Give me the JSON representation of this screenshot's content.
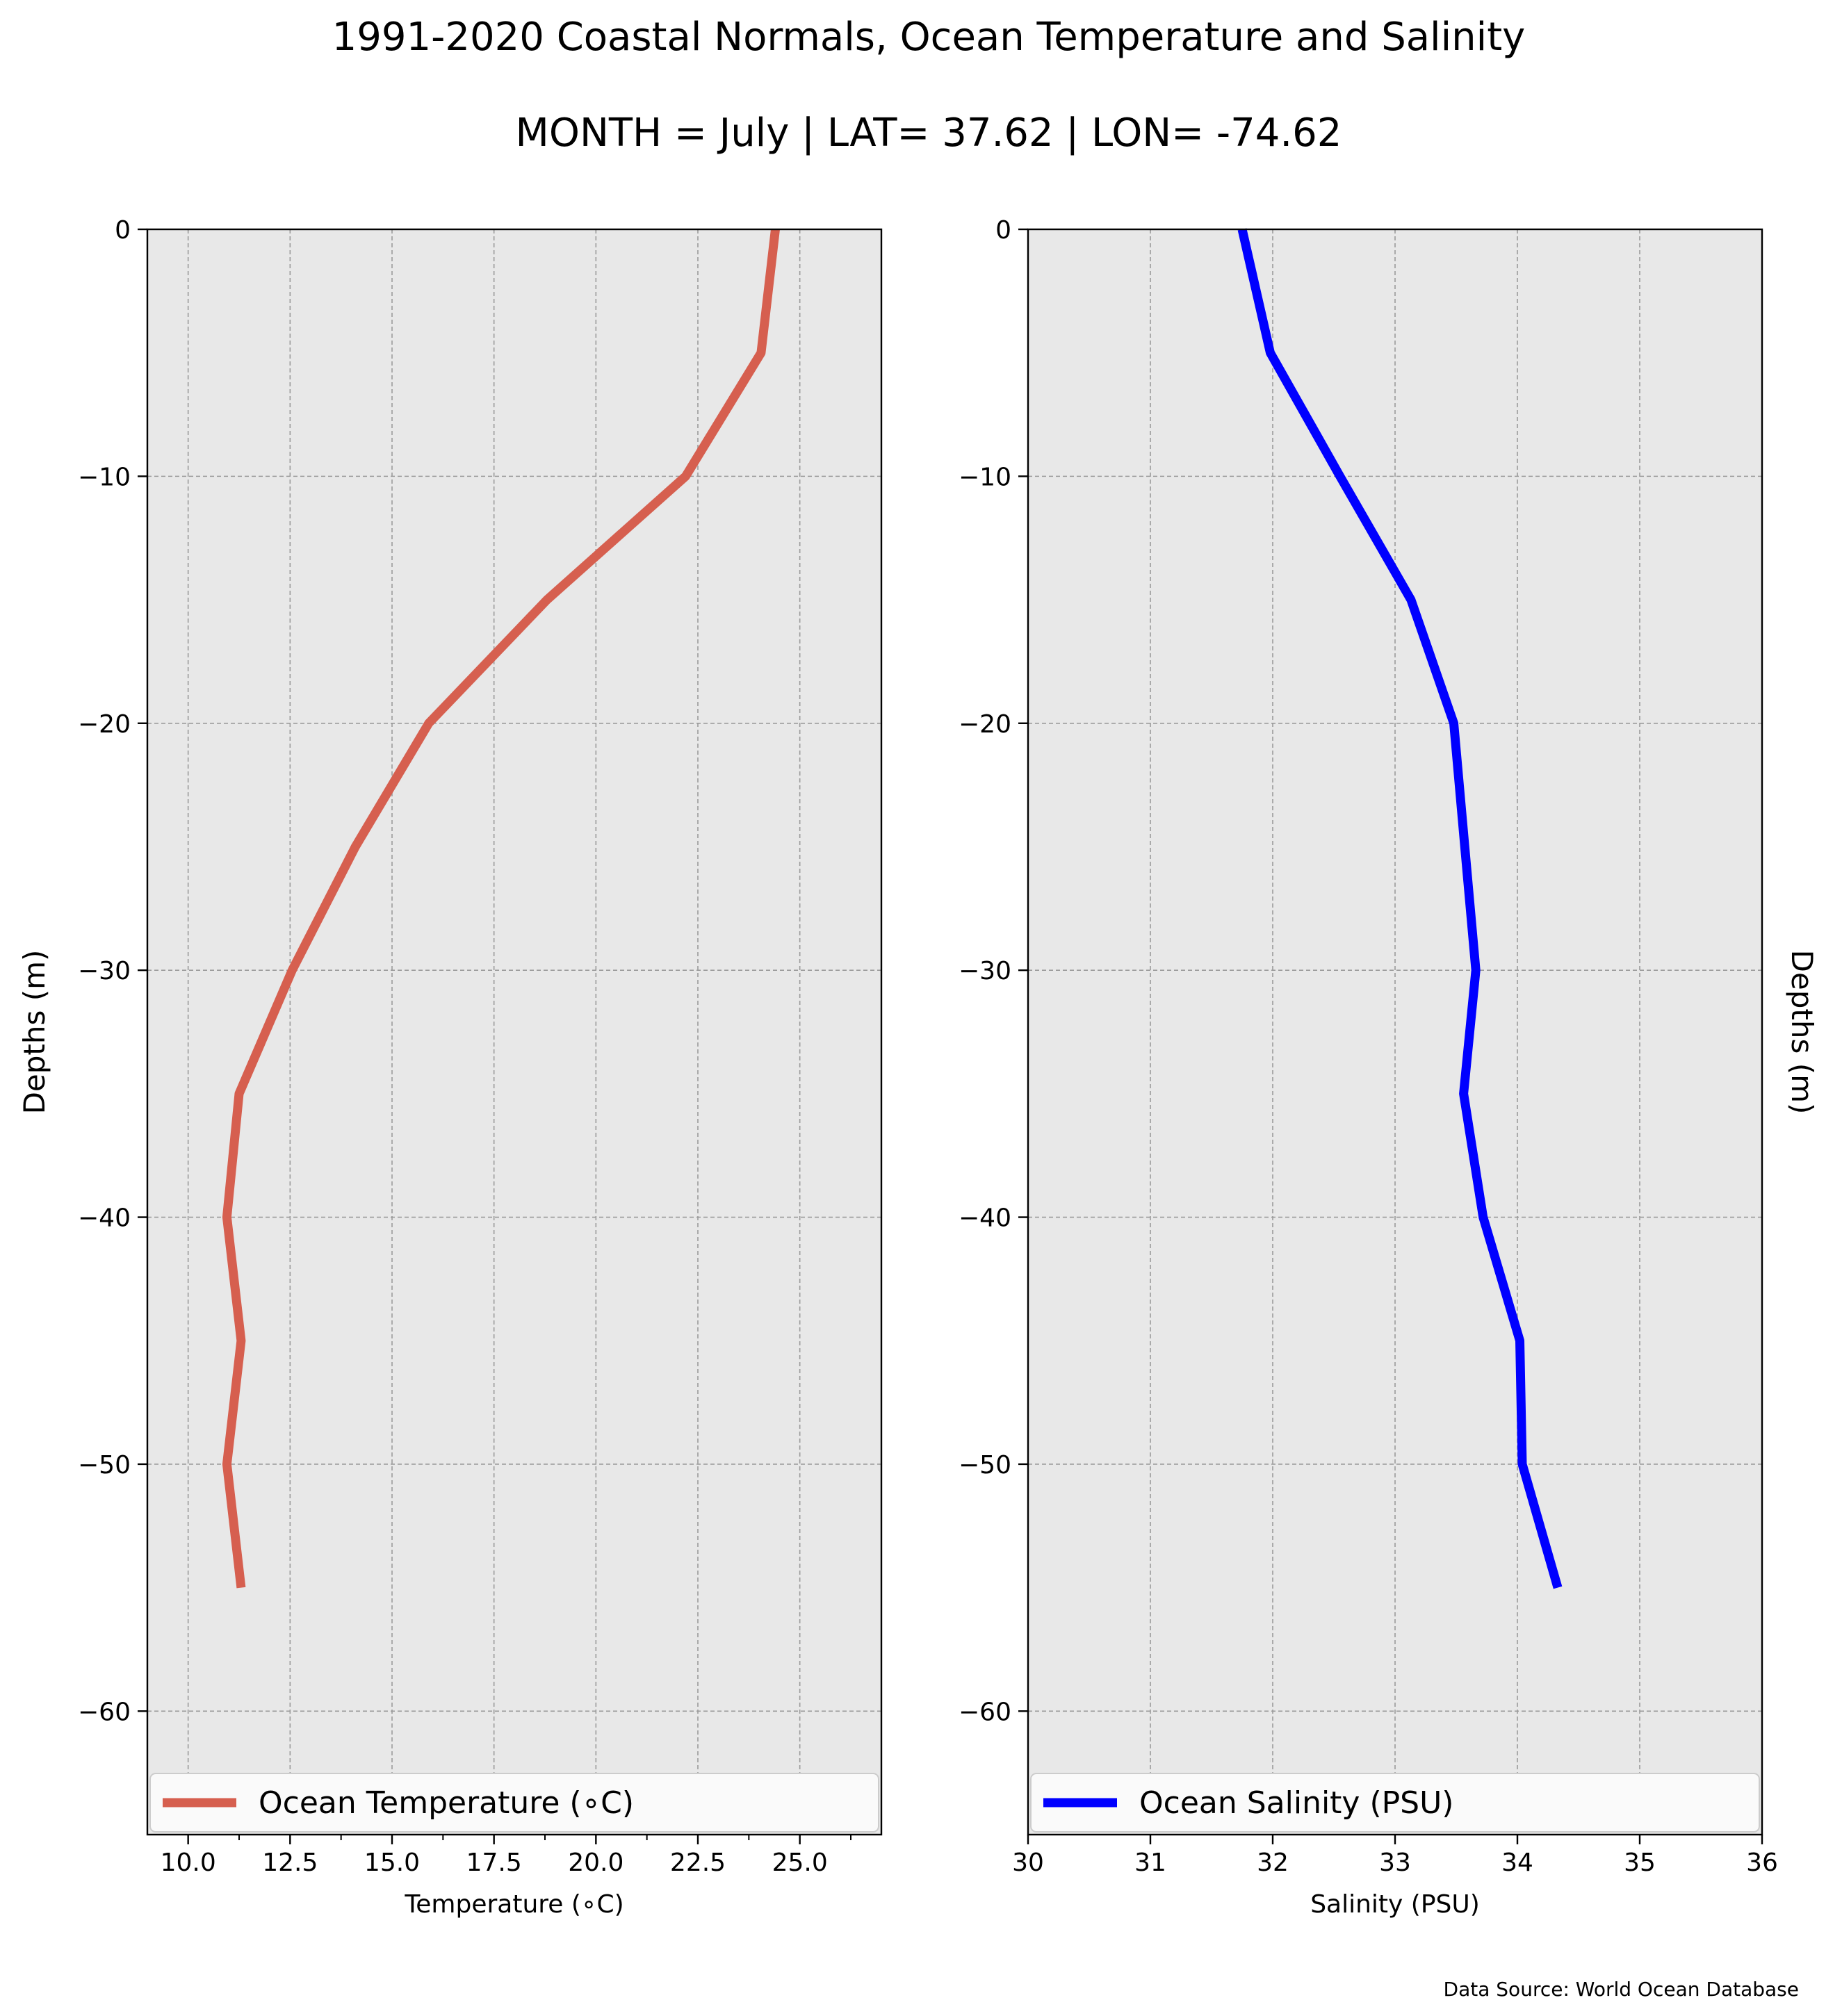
{
  "figure": {
    "title": "1991-2020 Coastal Normals, Ocean Temperature and Salinity",
    "subtitle": "MONTH = July | LAT= 37.62 | LON= -74.62",
    "source": "Data Source: World Ocean Database"
  },
  "chart_data": [
    {
      "type": "line",
      "xlabel": "Temperature (∘C)",
      "ylabel": "Depths (m)",
      "xlim": [
        9,
        27
      ],
      "ylim": [
        -65,
        0
      ],
      "xticks": [
        10,
        12.5,
        15,
        17.5,
        20,
        22.5,
        25
      ],
      "xtick_labels": [
        "10.0",
        "12.5",
        "15.0",
        "17.5",
        "20.0",
        "22.5",
        "25.0"
      ],
      "yticks": [
        0,
        -10,
        -20,
        -30,
        -40,
        -50,
        -60
      ],
      "ytick_labels": [
        "0",
        "−10",
        "−20",
        "−30",
        "−40",
        "−50",
        "−60"
      ],
      "grid": true,
      "legend": "bottom",
      "color": "#d65f4f",
      "series": [
        {
          "name": "Ocean Temperature (∘C)",
          "x": [
            24.4,
            24.05,
            22.2,
            18.8,
            15.9,
            14.1,
            12.55,
            11.25,
            10.95,
            11.3,
            10.95,
            11.3
          ],
          "y": [
            0,
            -5,
            -10,
            -15,
            -20,
            -25,
            -30,
            -35,
            -40,
            -45,
            -50,
            -55
          ]
        }
      ]
    },
    {
      "type": "line",
      "xlabel": "Salinity (PSU)",
      "ylabel": "Depths (m)",
      "xlim": [
        30,
        36
      ],
      "ylim": [
        -65,
        0
      ],
      "xticks": [
        30,
        31,
        32,
        33,
        34,
        35,
        36
      ],
      "xtick_labels": [
        "30",
        "31",
        "32",
        "33",
        "34",
        "35",
        "36"
      ],
      "yticks": [
        0,
        -10,
        -20,
        -30,
        -40,
        -50,
        -60
      ],
      "ytick_labels": [
        "0",
        "−10",
        "−20",
        "−30",
        "−40",
        "−50",
        "−60"
      ],
      "grid": true,
      "legend": "bottom",
      "color": "#0000ff",
      "series": [
        {
          "name": "Ocean Salinity (PSU)",
          "x": [
            31.75,
            31.98,
            32.55,
            33.13,
            33.48,
            33.57,
            33.66,
            33.56,
            33.72,
            34.02,
            34.04,
            34.33
          ],
          "y": [
            0,
            -5,
            -10,
            -15,
            -20,
            -25,
            -30,
            -35,
            -40,
            -45,
            -50,
            -55
          ]
        }
      ]
    }
  ]
}
